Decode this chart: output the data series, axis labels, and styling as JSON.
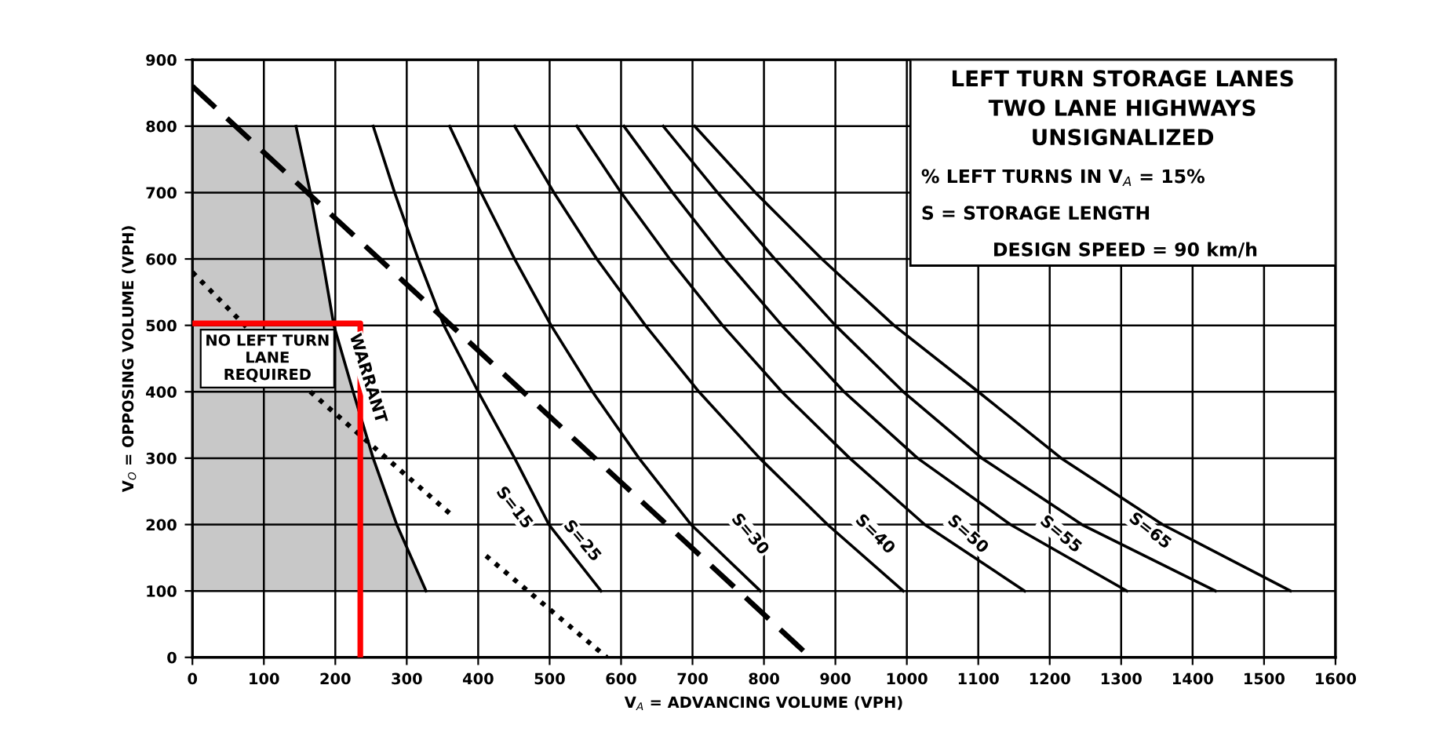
{
  "chart_data": {
    "type": "line",
    "title": "LEFT TURN STORAGE LANES\nTWO LANE HIGHWAYS\nUNSIGNALIZED",
    "xlabel": "V$_{A}$ = ADVANCING VOLUME (VPH)",
    "ylabel": "V$_{O}$ = OPPOSING VOLUME (VPH)",
    "xlim": [
      0,
      1600
    ],
    "ylim": [
      0,
      900
    ],
    "xticks": [
      0,
      100,
      200,
      300,
      400,
      500,
      600,
      700,
      800,
      900,
      1000,
      1100,
      1200,
      1300,
      1400,
      1500,
      1600
    ],
    "yticks": [
      0,
      100,
      200,
      300,
      400,
      500,
      600,
      700,
      800,
      900
    ],
    "grid": true,
    "series": [
      {
        "color": "#000000",
        "x": [
          145,
          165,
          182,
          198,
          225,
          253,
          286,
          327
        ],
        "values": [
          800,
          700,
          600,
          500,
          400,
          300,
          200,
          100
        ]
      },
      {
        "color": "#000000",
        "line_style": "dashed",
        "x": [
          0,
          865
        ],
        "values": [
          860,
          0
        ]
      },
      {
        "color": "#000000",
        "line_style": "dotted",
        "x": [
          0,
          165,
          360,
          385,
          411,
          580
        ],
        "values": [
          580,
          400,
          217,
          null,
          153,
          0
        ]
      },
      {
        "color": "#000000",
        "x": [
          253,
          283,
          316,
          352,
          400,
          451,
          499,
          572
        ],
        "values": [
          800,
          700,
          600,
          500,
          400,
          300,
          200,
          100
        ]
      },
      {
        "color": "#000000",
        "x": [
          360,
          404,
          451,
          502,
          560,
          625,
          698,
          795
        ],
        "values": [
          800,
          700,
          600,
          500,
          400,
          300,
          200,
          100
        ]
      },
      {
        "color": "#000000",
        "x": [
          451,
          506,
          566,
          634,
          709,
          794,
          889,
          995
        ],
        "values": [
          800,
          700,
          600,
          500,
          400,
          300,
          200,
          100
        ]
      },
      {
        "color": "#000000",
        "x": [
          538,
          600,
          668,
          742,
          825,
          920,
          1025,
          1165
        ],
        "values": [
          800,
          700,
          600,
          500,
          400,
          300,
          200,
          100
        ]
      },
      {
        "color": "#000000",
        "x": [
          604,
          672,
          745,
          825,
          912,
          1015,
          1145,
          1308
        ],
        "values": [
          800,
          700,
          600,
          500,
          400,
          300,
          200,
          100
        ]
      },
      {
        "color": "#000000",
        "x": [
          659,
          735,
          815,
          900,
          995,
          1105,
          1245,
          1432
        ],
        "values": [
          800,
          700,
          600,
          500,
          400,
          300,
          200,
          100
        ]
      },
      {
        "color": "#000000",
        "x": [
          703,
          788,
          881,
          982,
          1100,
          1216,
          1358,
          1537
        ],
        "values": [
          800,
          700,
          600,
          500,
          400,
          300,
          200,
          100
        ]
      },
      {
        "color": "#ff0000",
        "x": [
          0,
          235,
          235
        ],
        "values": [
          503,
          503,
          0
        ]
      }
    ],
    "annotations": [
      "% LEFT TURNS IN V$_{A}$ = 15%",
      "S = STORAGE LENGTH",
      "DESIGN SPEED = 90 km/h",
      {
        "text": "NO LEFT TURN\nLANE\nREQUIRED",
        "x": 105,
        "y": 450
      },
      {
        "text": "WARRANT",
        "x": 245,
        "y": 420
      },
      {
        "text": "S=15",
        "x": 450,
        "y": 225
      },
      {
        "text": "S=25",
        "x": 545,
        "y": 175
      },
      {
        "text": "S=30",
        "x": 780,
        "y": 185
      },
      {
        "text": "S=40",
        "x": 955,
        "y": 185
      },
      {
        "text": "S=50",
        "x": 1085,
        "y": 185
      },
      {
        "text": "S=55",
        "x": 1215,
        "y": 185
      },
      {
        "text": "S=65",
        "x": 1340,
        "y": 190
      }
    ]
  }
}
